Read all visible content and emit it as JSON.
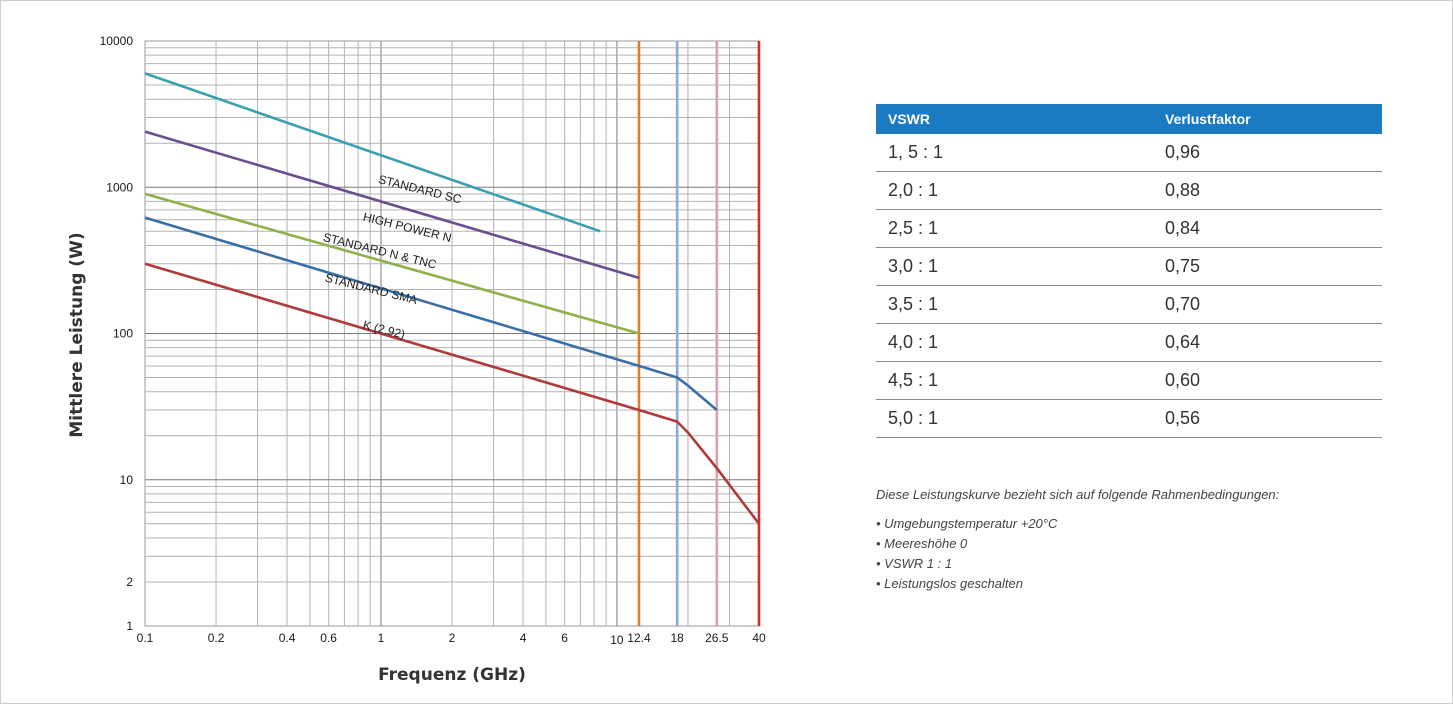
{
  "chart_data": {
    "type": "line",
    "xlabel": "Frequenz (GHz)",
    "ylabel": "Mittlere Leistung (W)",
    "x_scale": "log",
    "y_scale": "log",
    "xlim": [
      0.1,
      40
    ],
    "ylim": [
      1,
      10000
    ],
    "grid": true,
    "x_ticks": [
      {
        "value": 0.1,
        "label": "0.1"
      },
      {
        "value": 0.2,
        "label": "0.2"
      },
      {
        "value": 0.4,
        "label": "0.4"
      },
      {
        "value": 0.6,
        "label": "0.6"
      },
      {
        "value": 1,
        "label": "1"
      },
      {
        "value": 2,
        "label": "2"
      },
      {
        "value": 4,
        "label": "4"
      },
      {
        "value": 6,
        "label": "6"
      },
      {
        "value": 10,
        "label": "10"
      },
      {
        "value": 12.4,
        "label": "12.4"
      },
      {
        "value": 18,
        "label": "18"
      },
      {
        "value": 26.5,
        "label": "26.5"
      },
      {
        "value": 40,
        "label": "40"
      }
    ],
    "y_ticks": [
      {
        "value": 1,
        "label": "1"
      },
      {
        "value": 2,
        "label": "2"
      },
      {
        "value": 10,
        "label": "10"
      },
      {
        "value": 100,
        "label": "100"
      },
      {
        "value": 1000,
        "label": "1000"
      },
      {
        "value": 10000,
        "label": "10000"
      }
    ],
    "cutoff_lines": [
      {
        "x": 12.4,
        "color": "#e07b2a"
      },
      {
        "x": 18,
        "color": "#8fa9d6"
      },
      {
        "x": 26.5,
        "color": "#e0a0a8"
      },
      {
        "x": 40,
        "color": "#d42a2a"
      }
    ],
    "series": [
      {
        "name": "STANDARD SC",
        "color": "#3a9fb0",
        "points": [
          [
            0.1,
            6000
          ],
          [
            8.5,
            500
          ]
        ]
      },
      {
        "name": "HIGH POWER N",
        "color": "#6a4e90",
        "points": [
          [
            0.1,
            2400
          ],
          [
            12.4,
            240
          ]
        ]
      },
      {
        "name": "STANDARD N & TNC",
        "color": "#8fb04a",
        "points": [
          [
            0.1,
            900
          ],
          [
            12.4,
            100
          ]
        ]
      },
      {
        "name": "STANDARD SMA",
        "color": "#3a6ea8",
        "points": [
          [
            0.1,
            620
          ],
          [
            12.4,
            60
          ],
          [
            18,
            50
          ],
          [
            20,
            44
          ],
          [
            26.5,
            30
          ]
        ]
      },
      {
        "name": "K (2.92)",
        "color": "#b03a3a",
        "points": [
          [
            0.1,
            300
          ],
          [
            12.4,
            30
          ],
          [
            18,
            25
          ],
          [
            20,
            21
          ],
          [
            26.5,
            12
          ],
          [
            40,
            5
          ]
        ]
      }
    ],
    "curve_labels": [
      {
        "text": "STANDARD SC",
        "x": 1.45,
        "y": 910,
        "angle": 14
      },
      {
        "text": "HIGH POWER N",
        "x": 1.28,
        "y": 500,
        "angle": 14
      },
      {
        "text": "STANDARD N & TNC",
        "x": 0.98,
        "y": 345,
        "angle": 14
      },
      {
        "text": "STANDARD SMA",
        "x": 0.9,
        "y": 190,
        "angle": 14
      },
      {
        "text": "K (2.92)",
        "x": 1.02,
        "y": 100,
        "angle": 14
      }
    ]
  },
  "table": {
    "headers": [
      "VSWR",
      "Verlustfaktor"
    ],
    "header_color": "#1a7ac2",
    "rows": [
      [
        "1, 5 : 1",
        "0,96"
      ],
      [
        "2,0 : 1",
        "0,88"
      ],
      [
        "2,5 : 1",
        "0,84"
      ],
      [
        "3,0 : 1",
        "0,75"
      ],
      [
        "3,5 : 1",
        "0,70"
      ],
      [
        "4,0 : 1",
        "0,64"
      ],
      [
        "4,5 : 1",
        "0,60"
      ],
      [
        "5,0 : 1",
        "0,56"
      ]
    ]
  },
  "notes": {
    "intro": "Diese Leistungskurve bezieht sich auf folgende Rahmenbedingungen:",
    "items": [
      "• Umgebungstemperatur  +20°C",
      "• Meereshöhe 0",
      "• VSWR 1 : 1",
      "• Leistungslos geschalten"
    ]
  }
}
